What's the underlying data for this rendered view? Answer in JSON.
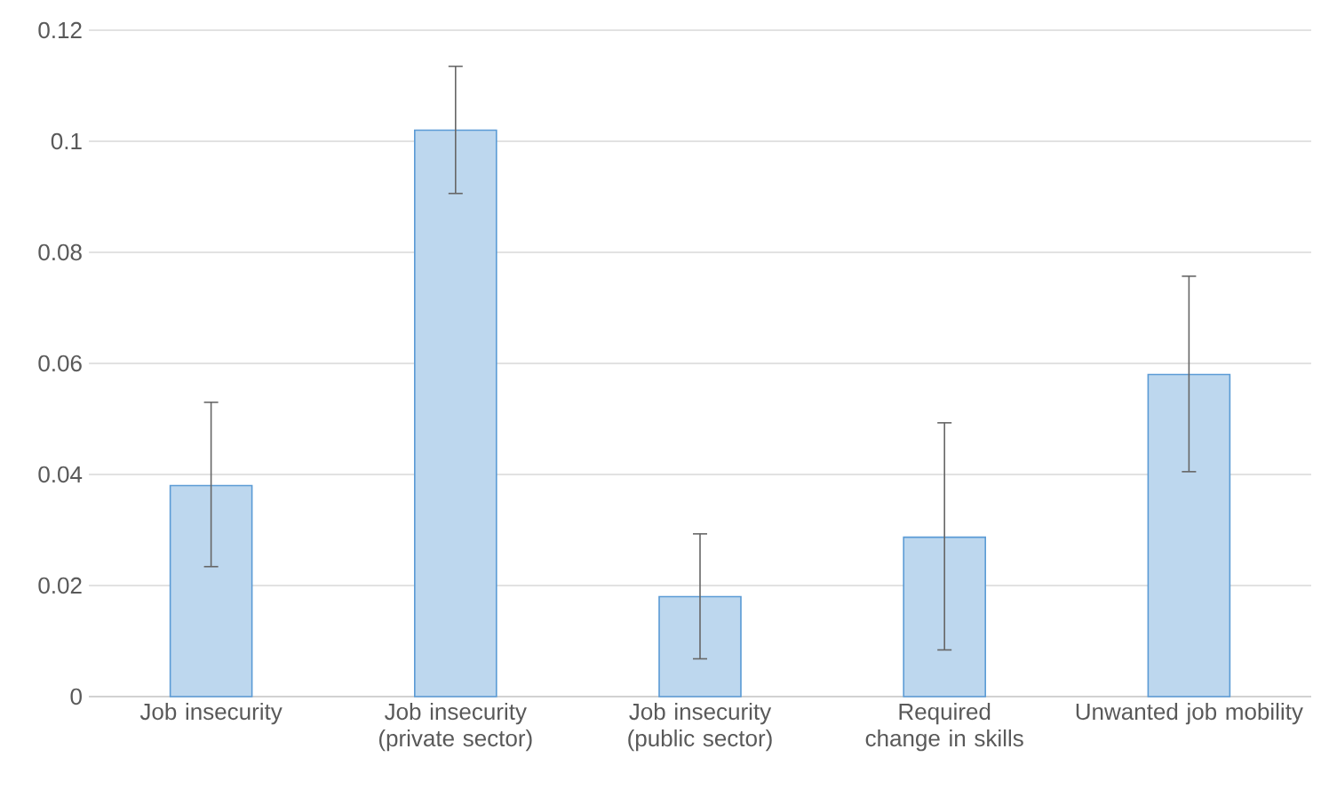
{
  "chart_data": {
    "type": "bar",
    "categories": [
      "Job insecurity",
      "Job insecurity (private sector)",
      "Job insecurity (public sector)",
      "Required change in skills",
      "Unwanted job mobility"
    ],
    "values": [
      0.038,
      0.102,
      0.018,
      0.0287,
      0.058
    ],
    "errors": [
      [
        0.0234,
        0.053
      ],
      [
        0.0906,
        0.1135
      ],
      [
        0.0068,
        0.0293
      ],
      [
        0.0084,
        0.0493
      ],
      [
        0.0405,
        0.0757
      ]
    ],
    "color": "#bdd7ee",
    "ylim": [
      0,
      0.12
    ],
    "yticks": [
      0,
      0.02,
      0.04,
      0.06,
      0.08,
      0.1,
      0.12
    ],
    "grid": "y"
  }
}
